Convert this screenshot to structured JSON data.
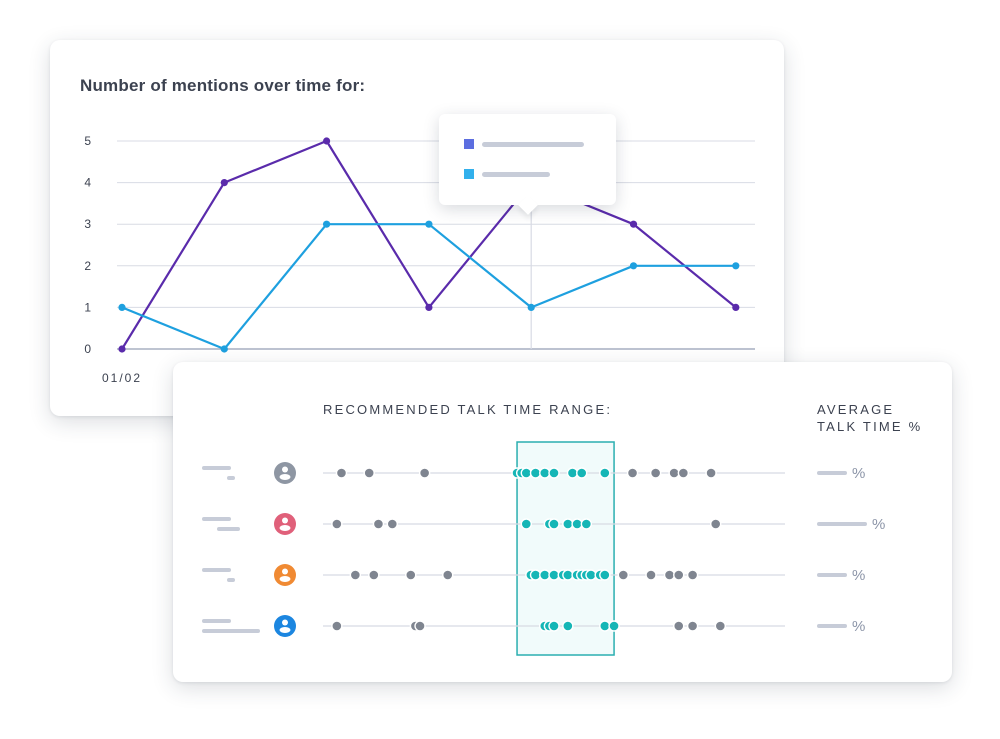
{
  "colors": {
    "series_purple": "#5a2bab",
    "series_blue": "#1ea0df",
    "grid": "#d8dbe4",
    "axis": "#a8b0c2",
    "placeholder": "#c7ccd8",
    "dot_gray": "#7f8590",
    "dot_teal": "#16b6b6",
    "range_border": "#2aaeb0",
    "range_fill": "#f1fbfb",
    "tooltip_swatch_1": "#5c6ee0",
    "tooltip_swatch_2": "#32b0ec"
  },
  "chart_data": [
    {
      "type": "line",
      "title": "Number of mentions over time for:",
      "x": [
        1,
        2,
        3,
        4,
        5,
        6,
        7
      ],
      "x_tick_labels": [
        "01/02"
      ],
      "ylim": [
        0,
        5
      ],
      "y_ticks": [
        0,
        1,
        2,
        3,
        4,
        5
      ],
      "grid": true,
      "series": [
        {
          "values": [
            0,
            4,
            5,
            1,
            4,
            3,
            1
          ],
          "color": "#5a2bab"
        },
        {
          "values": [
            1,
            0,
            3,
            3,
            1,
            2,
            2
          ],
          "color": "#1ea0df"
        }
      ],
      "hover_x": 5,
      "tooltip_swatches": [
        "tooltip_swatch_1",
        "tooltip_swatch_2"
      ]
    },
    {
      "type": "scatter",
      "title": "RECOMMENDED TALK TIME RANGE:",
      "average_heading": "AVERAGE TALK TIME %",
      "average_symbol": "%",
      "xlim": [
        0,
        100
      ],
      "recommended_range": [
        42,
        63
      ],
      "rows": [
        {
          "avatar": "#8e96a3",
          "points": [
            4,
            10,
            22,
            42,
            43,
            44,
            46,
            48,
            50,
            54,
            56,
            61,
            67,
            72,
            76,
            78,
            84
          ]
        },
        {
          "avatar": "#e0607a",
          "points": [
            3,
            12,
            15,
            44,
            49,
            50,
            53,
            55,
            57,
            85
          ]
        },
        {
          "avatar": "#f08a33",
          "points": [
            7,
            11,
            19,
            27,
            45,
            46,
            48,
            50,
            52,
            53,
            55,
            56,
            57,
            58,
            60,
            61,
            65,
            71,
            75,
            77,
            80
          ]
        },
        {
          "avatar": "#1c86e0",
          "points": [
            3,
            20,
            21,
            48,
            49,
            50,
            53,
            61,
            63,
            77,
            80,
            86
          ]
        }
      ]
    }
  ]
}
